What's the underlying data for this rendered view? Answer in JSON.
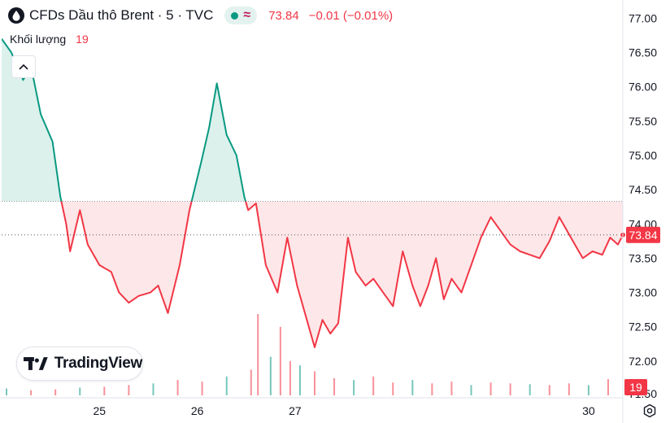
{
  "header": {
    "symbol_title": "CFDs Dầu thô Brent · 5 · TVC",
    "last_price": "73.84",
    "change": "−0.01 (−0.01%)",
    "status_approx": "≈"
  },
  "volume_legend": {
    "label": "Khối lượng",
    "value": "19"
  },
  "watermark": "TradingView",
  "colors": {
    "up": "#089981",
    "down": "#f23645",
    "up_fill": "#d6efe9",
    "down_fill": "#fde4e5",
    "text": "#131722",
    "axis_text": "#131722",
    "baseline": "#9598a1"
  },
  "icons": {
    "symbol": "drop-icon",
    "collapse": "chevron-up-icon",
    "settings": "gear-icon",
    "status": "market-open-dot-icon"
  },
  "chart_data": {
    "type": "area",
    "subtype": "baseline",
    "baseline_value": 74.33,
    "last_value": 73.84,
    "price_axis": {
      "min": 71.5,
      "max": 77.1,
      "ticks": [
        77.0,
        76.5,
        76.0,
        75.5,
        75.0,
        74.5,
        74.0,
        73.5,
        73.0,
        72.5,
        72.0
      ],
      "tick_labels": [
        "77.00",
        "76.50",
        "76.00",
        "75.50",
        "75.00",
        "74.50",
        "74.00",
        "73.50",
        "73.00",
        "72.50",
        "72.00"
      ],
      "bottom_label": "71.50",
      "position": "right"
    },
    "time_axis": {
      "min": 24.0,
      "max": 30.35,
      "ticks": [
        25,
        26,
        27,
        30
      ],
      "tick_labels": [
        "25",
        "26",
        "27",
        "30"
      ]
    },
    "price_badge": "73.84",
    "volume_badge": "19",
    "series": [
      {
        "x": [
          24.0,
          24.1,
          24.22,
          24.3,
          24.4,
          24.52,
          24.6,
          24.66,
          24.7,
          24.8,
          24.88,
          25.0,
          25.12,
          25.2,
          25.3,
          25.4,
          25.52,
          25.6,
          25.7,
          25.82,
          25.92,
          26.04,
          26.12,
          26.2,
          26.3,
          26.4,
          26.48,
          26.52,
          26.6,
          26.7,
          26.82,
          26.92,
          27.02,
          27.12,
          27.2,
          27.28,
          27.36,
          27.44,
          27.54,
          27.62,
          27.72,
          27.8,
          27.9,
          28.0,
          28.1,
          28.2,
          28.28,
          28.36,
          28.44,
          28.52,
          28.6,
          28.7,
          28.8,
          28.9,
          29.0,
          29.1,
          29.2,
          29.3,
          29.4,
          29.5,
          29.6,
          29.7,
          29.78,
          29.86,
          29.94,
          30.04,
          30.14,
          30.22,
          30.3,
          30.35
        ],
        "y": [
          76.7,
          76.5,
          76.1,
          76.3,
          75.6,
          75.2,
          74.4,
          74.0,
          73.6,
          74.2,
          73.7,
          73.4,
          73.3,
          73.0,
          72.85,
          72.95,
          73.0,
          73.1,
          72.7,
          73.4,
          74.2,
          74.9,
          75.4,
          76.05,
          75.3,
          75.0,
          74.4,
          74.2,
          74.3,
          73.4,
          73.0,
          73.8,
          73.1,
          72.6,
          72.2,
          72.6,
          72.4,
          72.55,
          73.8,
          73.3,
          73.1,
          73.2,
          73.0,
          72.8,
          73.6,
          73.1,
          72.8,
          73.1,
          73.5,
          72.9,
          73.2,
          73.0,
          73.4,
          73.8,
          74.1,
          73.9,
          73.7,
          73.6,
          73.55,
          73.5,
          73.75,
          74.1,
          73.9,
          73.7,
          73.5,
          73.6,
          73.55,
          73.8,
          73.7,
          73.84
        ]
      }
    ],
    "volume": {
      "x": [
        24.05,
        24.3,
        24.55,
        24.8,
        25.05,
        25.3,
        25.55,
        25.8,
        26.05,
        26.3,
        26.55,
        26.62,
        26.75,
        26.85,
        26.95,
        27.05,
        27.2,
        27.4,
        27.6,
        27.8,
        28.0,
        28.2,
        28.4,
        28.6,
        28.8,
        29.0,
        29.2,
        29.4,
        29.6,
        29.8,
        30.0,
        30.2
      ],
      "y": [
        8,
        6,
        7,
        9,
        10,
        12,
        14,
        18,
        16,
        22,
        30,
        95,
        45,
        80,
        40,
        35,
        28,
        20,
        18,
        22,
        15,
        18,
        14,
        16,
        12,
        15,
        14,
        13,
        12,
        14,
        12,
        19
      ]
    }
  }
}
